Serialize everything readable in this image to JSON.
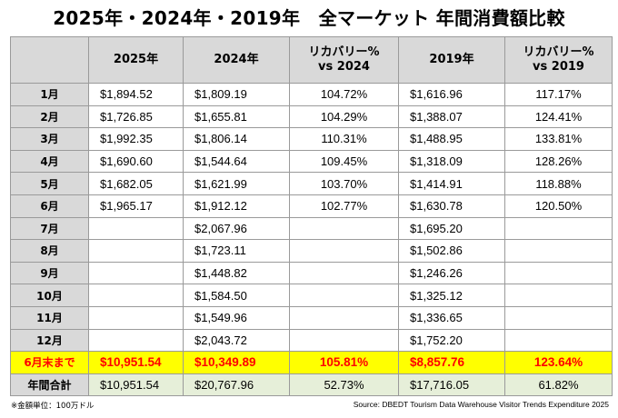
{
  "title": "2025年・2024年・2019年　全マーケット 年間消費額比較",
  "headers": [
    "",
    "2025年",
    "2024年",
    "リカバリー%\nvs 2024",
    "2019年",
    "リカバリー%\nvs 2019"
  ],
  "months": [
    {
      "label": "1月",
      "y2025": "$1,894.52",
      "y2024": "$1,809.19",
      "rec2024": "104.72%",
      "y2019": "$1,616.96",
      "rec2019": "117.17%"
    },
    {
      "label": "2月",
      "y2025": "$1,726.85",
      "y2024": "$1,655.81",
      "rec2024": "104.29%",
      "y2019": "$1,388.07",
      "rec2019": "124.41%"
    },
    {
      "label": "3月",
      "y2025": "$1,992.35",
      "y2024": "$1,806.14",
      "rec2024": "110.31%",
      "y2019": "$1,488.95",
      "rec2019": "133.81%"
    },
    {
      "label": "4月",
      "y2025": "$1,690.60",
      "y2024": "$1,544.64",
      "rec2024": "109.45%",
      "y2019": "$1,318.09",
      "rec2019": "128.26%"
    },
    {
      "label": "5月",
      "y2025": "$1,682.05",
      "y2024": "$1,621.99",
      "rec2024": "103.70%",
      "y2019": "$1,414.91",
      "rec2019": "118.88%"
    },
    {
      "label": "6月",
      "y2025": "$1,965.17",
      "y2024": "$1,912.12",
      "rec2024": "102.77%",
      "y2019": "$1,630.78",
      "rec2019": "120.50%"
    },
    {
      "label": "7月",
      "y2025": "",
      "y2024": "$2,067.96",
      "rec2024": "",
      "y2019": "$1,695.20",
      "rec2019": ""
    },
    {
      "label": "8月",
      "y2025": "",
      "y2024": "$1,723.11",
      "rec2024": "",
      "y2019": "$1,502.86",
      "rec2019": ""
    },
    {
      "label": "9月",
      "y2025": "",
      "y2024": "$1,448.82",
      "rec2024": "",
      "y2019": "$1,246.26",
      "rec2019": ""
    },
    {
      "label": "10月",
      "y2025": "",
      "y2024": "$1,584.50",
      "rec2024": "",
      "y2019": "$1,325.12",
      "rec2019": ""
    },
    {
      "label": "11月",
      "y2025": "",
      "y2024": "$1,549.96",
      "rec2024": "",
      "y2019": "$1,336.65",
      "rec2019": ""
    },
    {
      "label": "12月",
      "y2025": "",
      "y2024": "$2,043.72",
      "rec2024": "",
      "y2019": "$1,752.20",
      "rec2019": ""
    }
  ],
  "summary": {
    "label": "6月末まで",
    "y2025": "$10,951.54",
    "y2024": "$10,349.89",
    "rec2024": "105.81%",
    "y2019": "$8,857.76",
    "rec2019": "123.64%"
  },
  "annual": {
    "label": "年間合計",
    "y2025": "$10,951.54",
    "y2024": "$20,767.96",
    "rec2024": "52.73%",
    "y2019": "$17,716.05",
    "rec2019": "61.82%"
  },
  "note": "※金額単位：100万ドル",
  "source": "Source: DBEDT Tourism Data Warehouse Visitor Trends Expenditure 2025",
  "colors": {
    "header_bg": "#d9d9d9",
    "summary_bg": "#ffff00",
    "summary_text": "#ff0000",
    "annual_bg": "#e6efd9",
    "grid": "#9a9a9a"
  }
}
